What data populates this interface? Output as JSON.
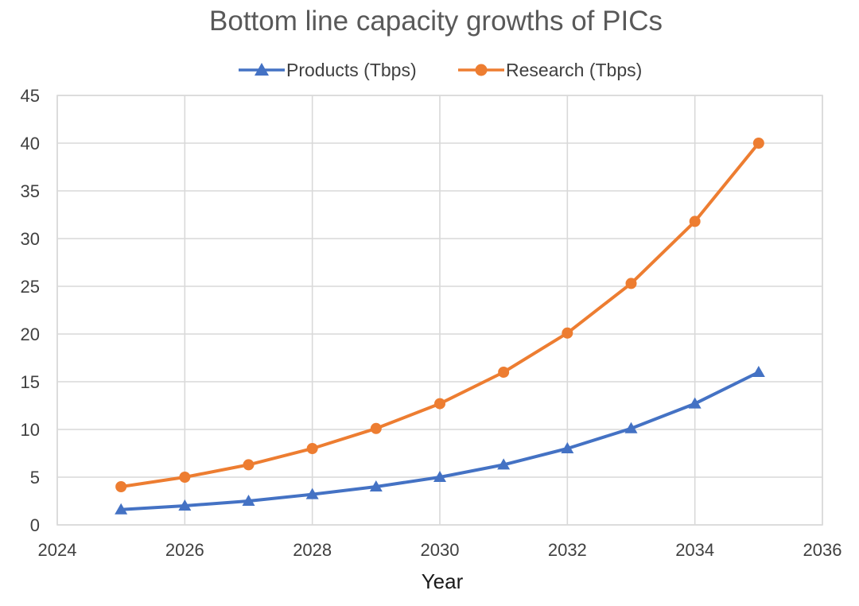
{
  "chart_data": {
    "type": "scatter",
    "title": "Bottom line capacity growths of PICs",
    "xlabel": "Year",
    "ylabel": "",
    "xlim": [
      2024,
      2036
    ],
    "ylim": [
      0,
      45
    ],
    "x_ticks": [
      2024,
      2026,
      2028,
      2030,
      2032,
      2034,
      2036
    ],
    "y_ticks": [
      0,
      5,
      10,
      15,
      20,
      25,
      30,
      35,
      40,
      45
    ],
    "grid": true,
    "legend_position": "top",
    "series": [
      {
        "name": "Products (Tbps)",
        "color": "#4472c4",
        "marker": "triangle",
        "x": [
          2025,
          2026,
          2027,
          2028,
          2029,
          2030,
          2031,
          2032,
          2033,
          2034,
          2035
        ],
        "y": [
          1.6,
          2.0,
          2.5,
          3.2,
          4.0,
          5.0,
          6.3,
          8.0,
          10.1,
          12.7,
          16.0
        ]
      },
      {
        "name": "Research (Tbps)",
        "color": "#ed7d31",
        "marker": "circle",
        "x": [
          2025,
          2026,
          2027,
          2028,
          2029,
          2030,
          2031,
          2032,
          2033,
          2034,
          2035
        ],
        "y": [
          4.0,
          5.0,
          6.3,
          8.0,
          10.1,
          12.7,
          16.0,
          20.1,
          25.3,
          31.8,
          40.0
        ]
      }
    ]
  }
}
